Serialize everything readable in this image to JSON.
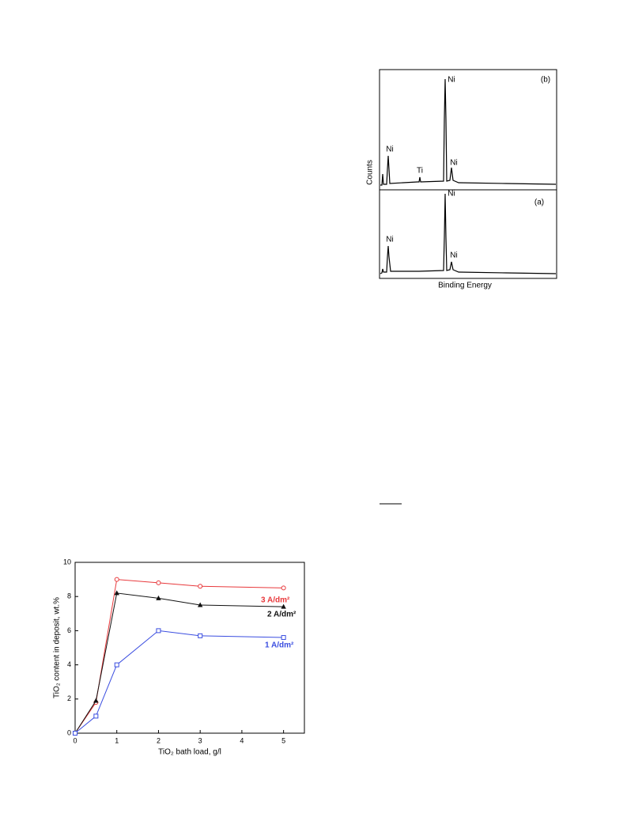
{
  "spectrum_figure": {
    "panel_b": "(b)",
    "panel_a": "(a)",
    "y_label": "Counts",
    "x_label": "Binding Energy",
    "peaks_b": [
      "Ni",
      "Ti",
      "Ni",
      "Ni"
    ],
    "peaks_a": [
      "Ni",
      "Ni",
      "Ni"
    ]
  },
  "chart_data": {
    "type": "line",
    "xlabel": "TiO₂ bath load, g/l",
    "ylabel": "TiO₂ content in deposit, wt.%",
    "x": [
      0,
      0.5,
      1,
      2,
      3,
      5
    ],
    "series": [
      {
        "name": "3 A/dm²",
        "color": "#e8383b",
        "marker": "circle",
        "values": [
          0,
          1.8,
          9.0,
          8.8,
          8.6,
          8.5
        ]
      },
      {
        "name": "2 A/dm²",
        "color": "#111111",
        "marker": "triangle",
        "values": [
          0,
          1.9,
          8.2,
          7.9,
          7.5,
          7.4
        ]
      },
      {
        "name": "1 A/dm²",
        "color": "#3a4de0",
        "marker": "square",
        "values": [
          0,
          1.0,
          4.0,
          6.0,
          5.7,
          5.6
        ]
      }
    ],
    "xlim": [
      0,
      5.5
    ],
    "xticks": [
      0,
      1,
      2,
      3,
      4,
      5
    ],
    "ylim": [
      0,
      10
    ],
    "yticks": [
      0,
      2,
      4,
      6,
      8,
      10
    ]
  }
}
